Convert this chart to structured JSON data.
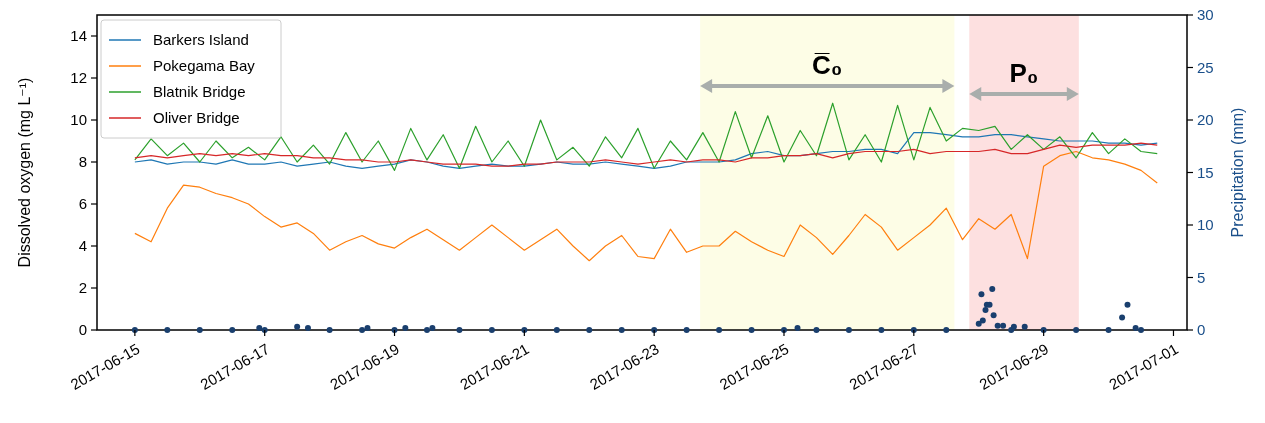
{
  "chart_data": {
    "type": "line",
    "ylabel": "Dissolved oxygen (mg L⁻¹)",
    "y2label": "Precipitation (mm)",
    "x": [
      "2017-06-15T00:00",
      "2017-06-15T06:00",
      "2017-06-15T12:00",
      "2017-06-15T18:00",
      "2017-06-16T00:00",
      "2017-06-16T06:00",
      "2017-06-16T12:00",
      "2017-06-16T18:00",
      "2017-06-17T00:00",
      "2017-06-17T06:00",
      "2017-06-17T12:00",
      "2017-06-17T18:00",
      "2017-06-18T00:00",
      "2017-06-18T06:00",
      "2017-06-18T12:00",
      "2017-06-18T18:00",
      "2017-06-19T00:00",
      "2017-06-19T06:00",
      "2017-06-19T12:00",
      "2017-06-19T18:00",
      "2017-06-20T00:00",
      "2017-06-20T06:00",
      "2017-06-20T12:00",
      "2017-06-20T18:00",
      "2017-06-21T00:00",
      "2017-06-21T06:00",
      "2017-06-21T12:00",
      "2017-06-21T18:00",
      "2017-06-22T00:00",
      "2017-06-22T06:00",
      "2017-06-22T12:00",
      "2017-06-22T18:00",
      "2017-06-23T00:00",
      "2017-06-23T06:00",
      "2017-06-23T12:00",
      "2017-06-23T18:00",
      "2017-06-24T00:00",
      "2017-06-24T06:00",
      "2017-06-24T12:00",
      "2017-06-24T18:00",
      "2017-06-25T00:00",
      "2017-06-25T06:00",
      "2017-06-25T12:00",
      "2017-06-25T18:00",
      "2017-06-26T00:00",
      "2017-06-26T06:00",
      "2017-06-26T12:00",
      "2017-06-26T18:00",
      "2017-06-27T00:00",
      "2017-06-27T06:00",
      "2017-06-27T12:00",
      "2017-06-27T18:00",
      "2017-06-28T00:00",
      "2017-06-28T06:00",
      "2017-06-28T12:00",
      "2017-06-28T18:00",
      "2017-06-29T00:00",
      "2017-06-29T06:00",
      "2017-06-29T12:00",
      "2017-06-29T18:00",
      "2017-06-30T00:00",
      "2017-06-30T06:00",
      "2017-06-30T12:00",
      "2017-06-30T18:00"
    ],
    "series": [
      {
        "name": "Barkers Island",
        "color": "#1f77b4",
        "values": [
          8.0,
          8.1,
          7.9,
          8.0,
          8.0,
          7.9,
          8.1,
          7.9,
          7.9,
          8.0,
          7.8,
          7.9,
          8.0,
          7.8,
          7.7,
          7.8,
          7.9,
          8.1,
          8.0,
          7.8,
          7.7,
          7.8,
          7.9,
          7.8,
          7.8,
          7.9,
          8.0,
          7.9,
          7.9,
          8.0,
          7.9,
          7.8,
          7.7,
          7.8,
          8.0,
          8.0,
          8.0,
          8.1,
          8.4,
          8.5,
          8.3,
          8.3,
          8.4,
          8.5,
          8.5,
          8.6,
          8.6,
          8.4,
          9.4,
          9.4,
          9.3,
          9.2,
          9.2,
          9.3,
          9.3,
          9.2,
          9.1,
          9.0,
          9.0,
          9.0,
          8.9,
          8.9,
          8.8,
          8.9
        ]
      },
      {
        "name": "Pokegama Bay",
        "color": "#ff7f0e",
        "values": [
          4.6,
          4.2,
          5.8,
          6.9,
          6.8,
          6.5,
          6.3,
          6.0,
          5.4,
          4.9,
          5.1,
          4.6,
          3.8,
          4.2,
          4.5,
          4.1,
          3.9,
          4.4,
          4.8,
          4.3,
          3.8,
          4.4,
          5.0,
          4.4,
          3.8,
          4.3,
          4.8,
          4.0,
          3.3,
          4.0,
          4.5,
          3.5,
          3.4,
          4.8,
          3.7,
          4.0,
          4.0,
          4.7,
          4.2,
          3.8,
          3.5,
          5.0,
          4.4,
          3.6,
          4.5,
          5.5,
          4.9,
          3.8,
          4.4,
          5.0,
          5.8,
          4.3,
          5.3,
          4.8,
          5.5,
          3.4,
          7.8,
          8.3,
          8.5,
          8.2,
          8.1,
          7.9,
          7.6,
          7.0
        ]
      },
      {
        "name": "Blatnik Bridge",
        "color": "#2ca02c",
        "values": [
          8.1,
          9.1,
          8.3,
          8.9,
          8.0,
          9.0,
          8.2,
          8.7,
          8.1,
          9.2,
          8.0,
          8.8,
          7.9,
          9.4,
          8.0,
          9.0,
          7.6,
          9.6,
          8.1,
          9.3,
          7.7,
          9.7,
          8.0,
          9.0,
          7.8,
          10.0,
          8.1,
          8.7,
          7.8,
          9.2,
          8.2,
          9.6,
          7.7,
          9.0,
          8.1,
          9.4,
          8.0,
          10.4,
          8.2,
          10.2,
          8.0,
          9.5,
          8.3,
          10.8,
          8.1,
          9.3,
          8.0,
          10.7,
          8.1,
          10.6,
          9.0,
          9.6,
          9.5,
          9.7,
          8.6,
          9.3,
          8.6,
          9.2,
          8.2,
          9.4,
          8.4,
          9.1,
          8.5,
          8.4
        ]
      },
      {
        "name": "Oliver Bridge",
        "color": "#d62728",
        "values": [
          8.2,
          8.3,
          8.2,
          8.3,
          8.4,
          8.3,
          8.4,
          8.3,
          8.4,
          8.3,
          8.3,
          8.2,
          8.2,
          8.1,
          8.1,
          8.0,
          8.0,
          8.1,
          8.0,
          7.9,
          7.9,
          7.9,
          7.8,
          7.8,
          7.9,
          7.9,
          8.0,
          8.0,
          8.0,
          8.1,
          8.0,
          7.9,
          8.0,
          8.1,
          8.0,
          8.1,
          8.1,
          8.0,
          8.2,
          8.2,
          8.3,
          8.3,
          8.4,
          8.2,
          8.4,
          8.5,
          8.5,
          8.5,
          8.6,
          8.4,
          8.5,
          8.5,
          8.5,
          8.6,
          8.4,
          8.4,
          8.6,
          8.8,
          8.7,
          8.8,
          8.8,
          8.8,
          8.9,
          8.8
        ]
      },
      {
        "type": "scatter",
        "axis": "y2",
        "marker": "circle",
        "color": "#1a3f6e",
        "x": [
          "2017-06-15T00:00",
          "2017-06-15T12:00",
          "2017-06-16T00:00",
          "2017-06-16T12:00",
          "2017-06-16T22:00",
          "2017-06-17T00:00",
          "2017-06-17T12:00",
          "2017-06-17T16:00",
          "2017-06-18T00:00",
          "2017-06-18T12:00",
          "2017-06-18T14:00",
          "2017-06-19T00:00",
          "2017-06-19T04:00",
          "2017-06-19T12:00",
          "2017-06-19T14:00",
          "2017-06-20T00:00",
          "2017-06-20T12:00",
          "2017-06-21T00:00",
          "2017-06-21T12:00",
          "2017-06-22T00:00",
          "2017-06-22T12:00",
          "2017-06-23T00:00",
          "2017-06-23T12:00",
          "2017-06-24T00:00",
          "2017-06-24T12:00",
          "2017-06-25T00:00",
          "2017-06-25T05:00",
          "2017-06-25T12:00",
          "2017-06-26T00:00",
          "2017-06-26T12:00",
          "2017-06-27T00:00",
          "2017-06-27T12:00",
          "2017-06-28T00:00",
          "2017-06-28T01:00",
          "2017-06-28T01:30",
          "2017-06-28T02:30",
          "2017-06-28T03:00",
          "2017-06-28T04:00",
          "2017-06-28T05:00",
          "2017-06-28T05:30",
          "2017-06-28T07:00",
          "2017-06-28T09:00",
          "2017-06-28T12:00",
          "2017-06-28T13:00",
          "2017-06-28T17:00",
          "2017-06-29T00:00",
          "2017-06-29T12:00",
          "2017-06-30T00:00",
          "2017-06-30T05:00",
          "2017-06-30T07:00",
          "2017-06-30T10:00",
          "2017-06-30T12:00"
        ],
        "values": [
          0,
          0,
          0,
          0,
          0.2,
          0,
          0.3,
          0.2,
          0,
          0,
          0.2,
          0,
          0.2,
          0,
          0.2,
          0,
          0,
          0,
          0,
          0,
          0,
          0,
          0,
          0,
          0,
          0,
          0.2,
          0,
          0,
          0,
          0,
          0,
          0.6,
          3.4,
          0.9,
          1.9,
          2.4,
          2.4,
          3.9,
          1.4,
          0.4,
          0.4,
          0,
          0.3,
          0.3,
          0,
          0,
          0,
          1.2,
          2.4,
          0.2,
          0
        ]
      }
    ],
    "xlim": [
      "2017-06-14T10:00",
      "2017-07-01T05:00"
    ],
    "xticks": [
      "2017-06-15",
      "2017-06-17",
      "2017-06-19",
      "2017-06-21",
      "2017-06-23",
      "2017-06-25",
      "2017-06-27",
      "2017-06-29",
      "2017-07-01"
    ],
    "ylim": [
      0,
      15
    ],
    "yticks": [
      0,
      2,
      4,
      6,
      8,
      10,
      12,
      14
    ],
    "y2lim": [
      0,
      30
    ],
    "y2ticks": [
      0,
      5,
      10,
      15,
      20,
      25,
      30
    ],
    "bands": [
      {
        "axis": "x",
        "from": "2017-06-23T17:00",
        "to": "2017-06-27T15:00",
        "label": "C̅₀",
        "color": "#fdfde6"
      },
      {
        "axis": "x",
        "from": "2017-06-27T20:30",
        "to": "2017-06-29T13:00",
        "label": "P₀",
        "color": "#fde0e0"
      }
    ],
    "legend": "top left",
    "grid": false
  }
}
